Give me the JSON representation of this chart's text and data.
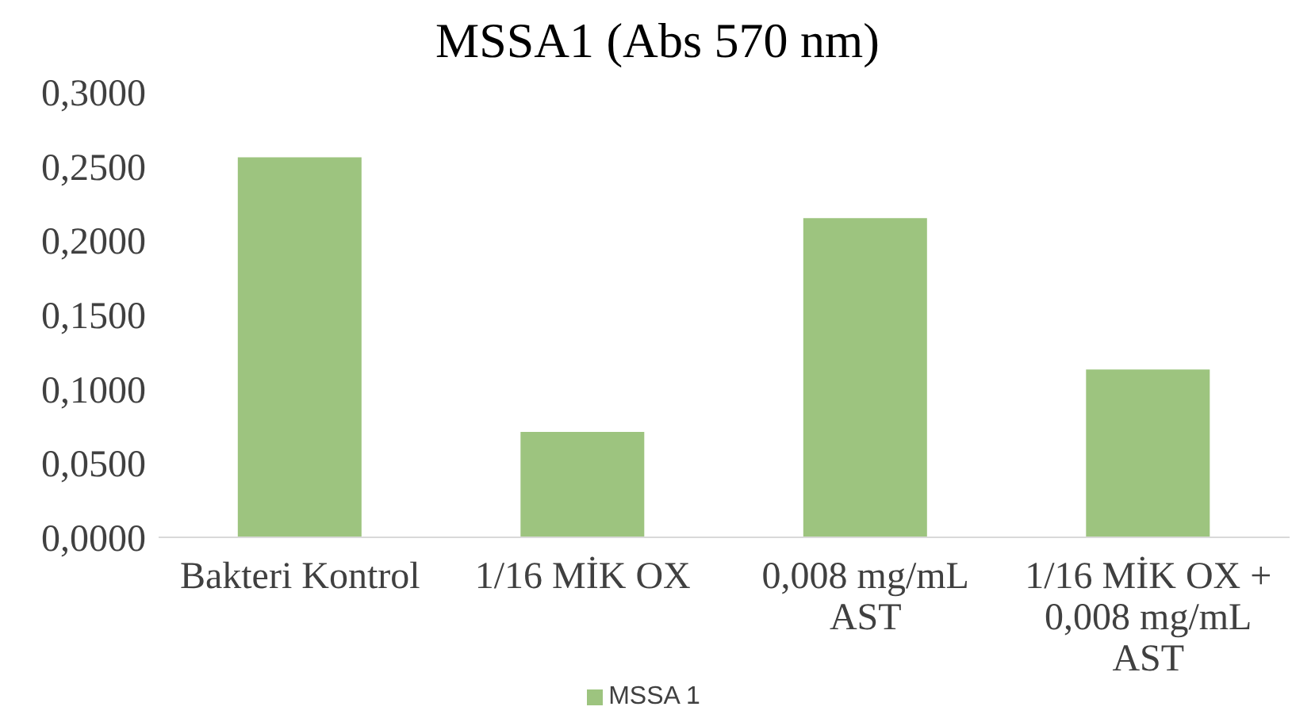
{
  "chart_data": {
    "type": "bar",
    "title": "MSSA1 (Abs 570 nm)",
    "categories": [
      "Bakteri Kontrol",
      "1/16 MİK OX",
      "0,008 mg/mL AST",
      "1/16 MİK OX + 0,008 mg/mL AST"
    ],
    "series": [
      {
        "name": "MSSA 1",
        "color": "#9dc47f",
        "values": [
          0.256,
          0.071,
          0.215,
          0.113
        ]
      }
    ],
    "ylim": [
      0,
      0.3
    ],
    "yticks": [
      {
        "value": 0,
        "label": "0,0000"
      },
      {
        "value": 0.05,
        "label": "0,0500"
      },
      {
        "value": 0.1,
        "label": "0,1000"
      },
      {
        "value": 0.15,
        "label": "0,1500"
      },
      {
        "value": 0.2,
        "label": "0,2000"
      },
      {
        "value": 0.25,
        "label": "0,2500"
      },
      {
        "value": 0.3,
        "label": "0,3000"
      }
    ],
    "grid": false,
    "legend": "bottom"
  }
}
